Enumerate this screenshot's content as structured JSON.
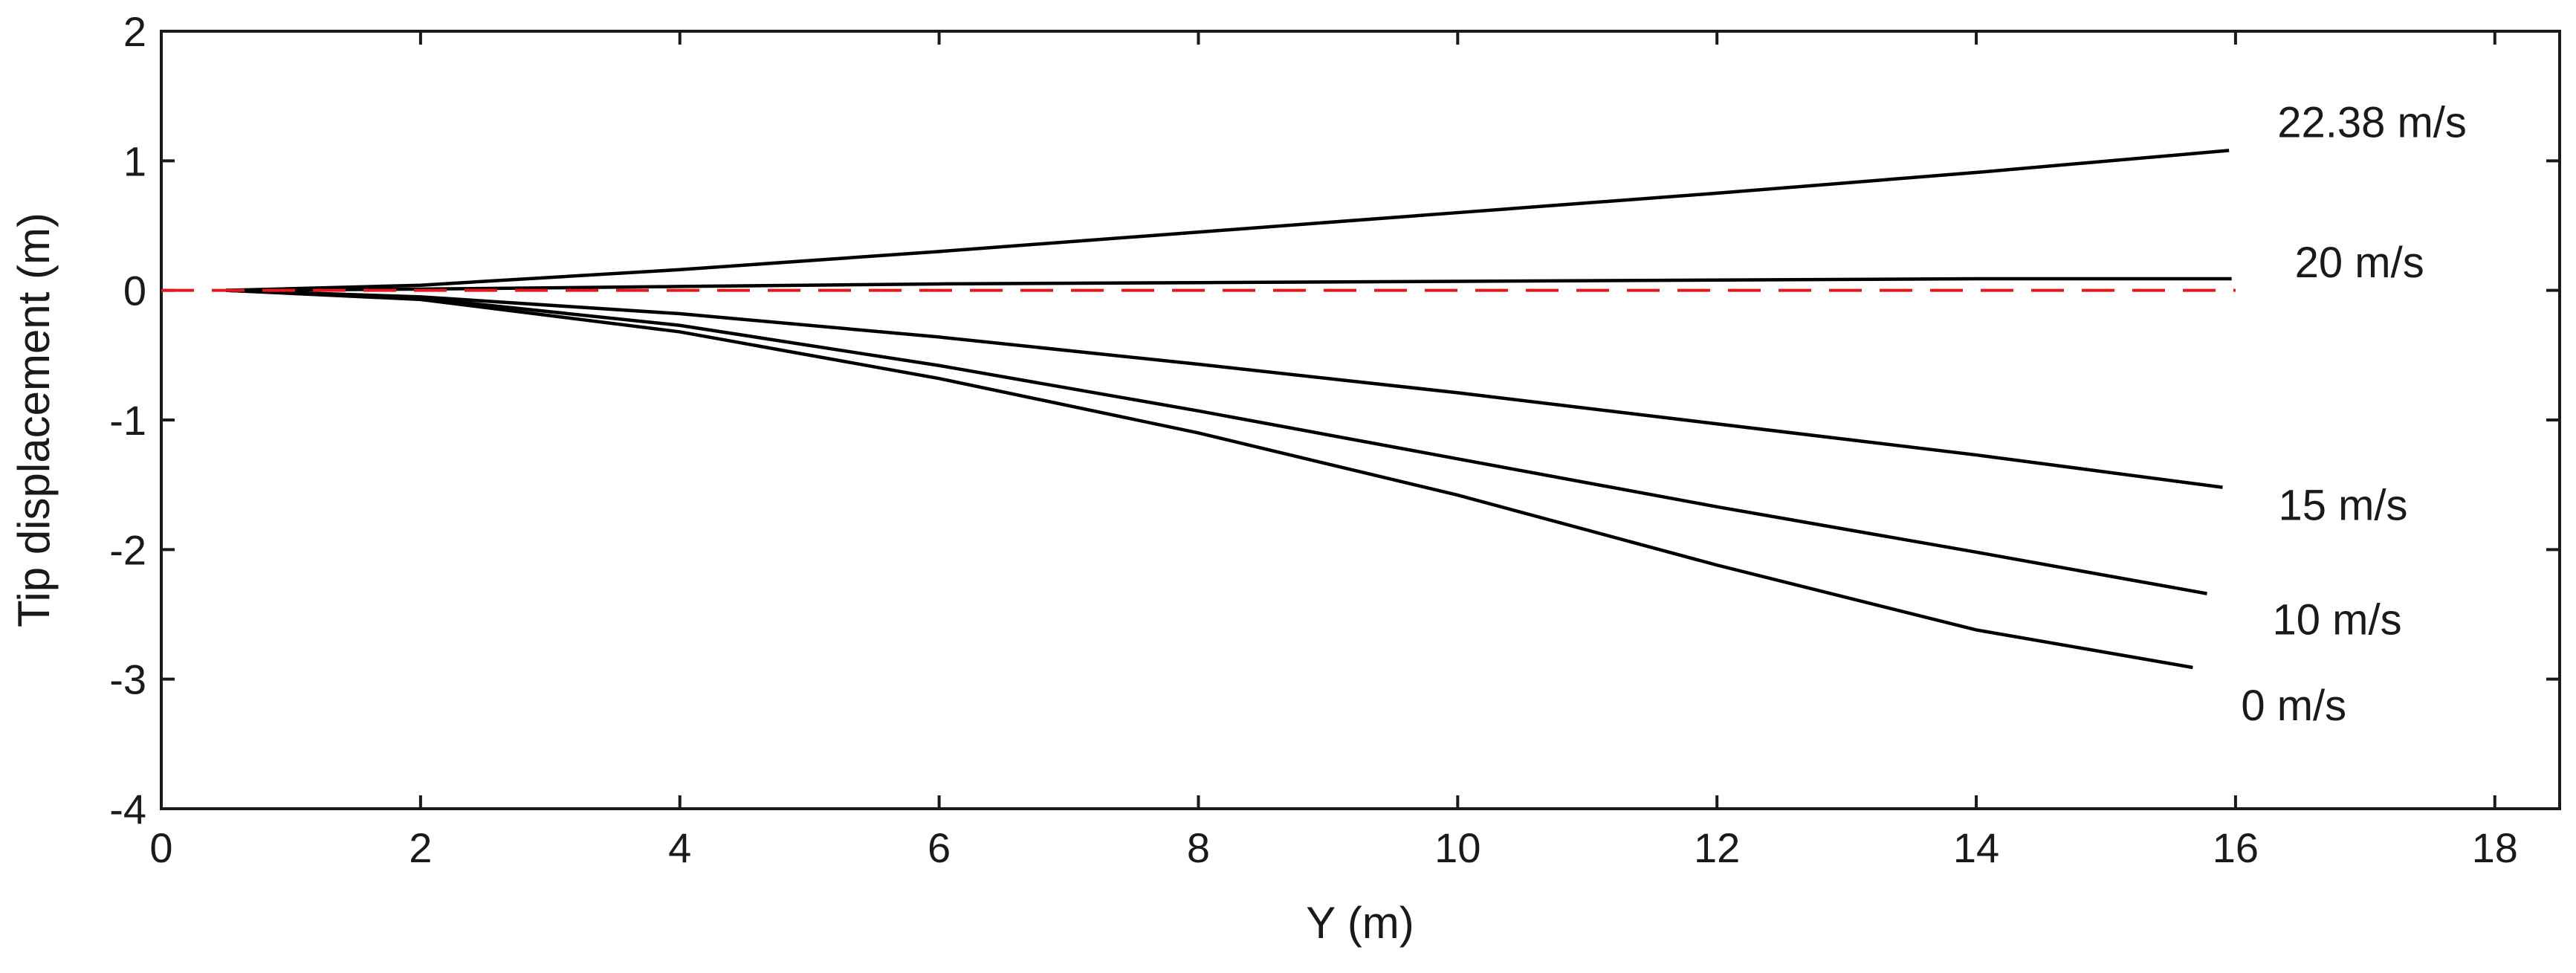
{
  "chart_data": {
    "type": "line",
    "xlabel": "Y (m)",
    "ylabel": "Tip displacement (m)",
    "xlim": [
      0,
      18.5
    ],
    "ylim": [
      -4,
      2
    ],
    "xticks": [
      0,
      2,
      4,
      6,
      8,
      10,
      12,
      14,
      16,
      18
    ],
    "yticks": [
      -4,
      -3,
      -2,
      -1,
      0,
      1,
      2
    ],
    "series": [
      {
        "name": "22.38 m/s",
        "color": "#000000",
        "x": [
          0.5,
          2,
          4,
          6,
          8,
          10,
          12,
          14,
          15.95
        ],
        "values": [
          0,
          0.04,
          0.16,
          0.3,
          0.45,
          0.6,
          0.75,
          0.91,
          1.08
        ]
      },
      {
        "name": "20 m/s",
        "color": "#000000",
        "x": [
          0.5,
          2,
          4,
          6,
          8,
          10,
          12,
          14,
          15.97
        ],
        "values": [
          0,
          0.01,
          0.03,
          0.05,
          0.06,
          0.07,
          0.08,
          0.09,
          0.09
        ]
      },
      {
        "name": "15 m/s",
        "color": "#000000",
        "x": [
          0.5,
          2,
          4,
          6,
          8,
          10,
          12,
          14,
          15.9
        ],
        "values": [
          0,
          -0.05,
          -0.18,
          -0.36,
          -0.57,
          -0.79,
          -1.03,
          -1.27,
          -1.52
        ]
      },
      {
        "name": "10 m/s",
        "color": "#000000",
        "x": [
          0.5,
          2,
          4,
          6,
          8,
          10,
          12,
          14,
          15.78
        ],
        "values": [
          0,
          -0.06,
          -0.27,
          -0.58,
          -0.93,
          -1.3,
          -1.67,
          -2.02,
          -2.34
        ]
      },
      {
        "name": "0 m/s",
        "color": "#000000",
        "x": [
          0.5,
          2,
          4,
          6,
          8,
          10,
          12,
          14,
          15.67
        ],
        "values": [
          0,
          -0.07,
          -0.32,
          -0.68,
          -1.1,
          -1.58,
          -2.12,
          -2.62,
          -2.91
        ]
      },
      {
        "color": "#e31a1c",
        "dashed": true,
        "x": [
          0,
          16
        ],
        "values": [
          0,
          0
        ]
      }
    ]
  }
}
